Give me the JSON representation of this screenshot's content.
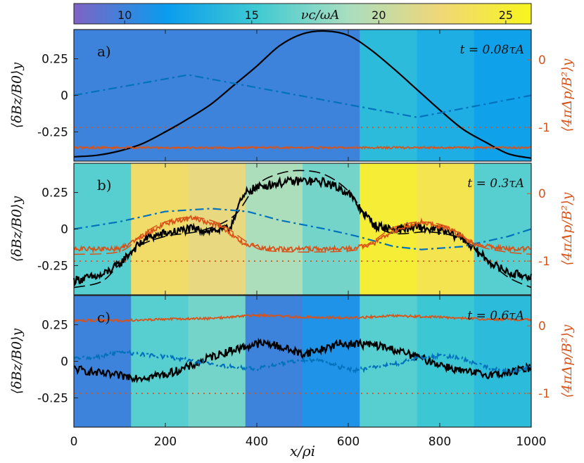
{
  "colorbar": {
    "label": "νc/ωA",
    "range": [
      8,
      26
    ],
    "ticks": [
      "10",
      "15",
      "20",
      "25"
    ],
    "tick_values": [
      10,
      15,
      20,
      25
    ],
    "stops": [
      "#7f63c4",
      "#0a9cee",
      "#3fcad3",
      "#a9dec0",
      "#f0d778",
      "#f8f51d"
    ]
  },
  "colors": {
    "bz": "#000000",
    "bx": "#0072bd",
    "pressure": "#d95319",
    "axis_right": "#d95319"
  },
  "chart_data": [
    {
      "type": "line",
      "panel_label": "a)",
      "time_label": "t = 0.08τA",
      "xlabel": "",
      "ylabel": "⟨δBz/B0⟩y",
      "ylabel_right": "⟨4πΔp/B²⟩y",
      "xlim": [
        0,
        1000
      ],
      "ylim": [
        -0.45,
        0.45
      ],
      "ylim_right": [
        -1.5,
        0.45
      ],
      "yticks": [
        "-0.25",
        "0",
        "0.25"
      ],
      "ytick_values": [
        -0.25,
        0,
        0.25
      ],
      "yticks_right": [
        "-1",
        "0"
      ],
      "ytick_values_right": [
        -1,
        0
      ],
      "background_nu": [
        10,
        10,
        10,
        10,
        10,
        14,
        13,
        12
      ],
      "series": [
        {
          "kind": "bz",
          "x": [
            0,
            50,
            100,
            150,
            200,
            250,
            300,
            350,
            400,
            450,
            500,
            550,
            600,
            650,
            700,
            750,
            800,
            850,
            900,
            950,
            1000
          ],
          "y": [
            -0.42,
            -0.41,
            -0.38,
            -0.33,
            -0.25,
            -0.16,
            -0.06,
            0.07,
            0.2,
            0.34,
            0.42,
            0.44,
            0.41,
            0.31,
            0.18,
            0.04,
            -0.1,
            -0.23,
            -0.32,
            -0.4,
            -0.43
          ]
        },
        {
          "kind": "bx",
          "x": [
            0,
            250,
            750,
            1000
          ],
          "y": [
            0.0,
            0.14,
            -0.15,
            0.0
          ]
        },
        {
          "kind": "dp",
          "x": [
            0,
            1000
          ],
          "y": [
            -1.3,
            -1.3
          ],
          "noise": 0.015
        },
        {
          "kind": "dp_ref",
          "x": [
            0,
            1000
          ],
          "y": [
            -1,
            -1
          ]
        }
      ]
    },
    {
      "type": "line",
      "panel_label": "b)",
      "time_label": "t = 0.3τA",
      "xlabel": "",
      "ylabel": "⟨δBz/B0⟩y",
      "ylabel_right": "⟨4πΔp/B²⟩y",
      "xlim": [
        0,
        1000
      ],
      "ylim": [
        -0.45,
        0.45
      ],
      "ylim_right": [
        -1.5,
        0.45
      ],
      "yticks": [
        "-0.25",
        "0",
        "0.25"
      ],
      "ytick_values": [
        -0.25,
        0,
        0.25
      ],
      "yticks_right": [
        "-1",
        "0"
      ],
      "ytick_values_right": [
        -1,
        0
      ],
      "background_nu": [
        16,
        23,
        22,
        19,
        17,
        25,
        24,
        16
      ],
      "series": [
        {
          "kind": "bz",
          "x": [
            0,
            60,
            100,
            130,
            160,
            200,
            250,
            300,
            340,
            360,
            380,
            420,
            460,
            500,
            550,
            600,
            630,
            660,
            700,
            750,
            800,
            850,
            880,
            920,
            960,
            1000
          ],
          "y": [
            -0.35,
            -0.32,
            -0.24,
            -0.14,
            -0.06,
            -0.03,
            0.0,
            -0.01,
            0.0,
            0.16,
            0.26,
            0.3,
            0.32,
            0.33,
            0.32,
            0.25,
            0.12,
            0.02,
            0.0,
            0.01,
            -0.01,
            -0.06,
            -0.15,
            -0.25,
            -0.31,
            -0.32
          ],
          "noise": 0.03
        },
        {
          "kind": "bz_fit",
          "x": [
            0,
            60,
            100,
            140,
            200,
            280,
            350,
            400,
            450,
            500,
            550,
            600,
            650,
            700,
            780,
            850,
            900,
            950,
            1000
          ],
          "y": [
            -0.4,
            -0.36,
            -0.24,
            -0.12,
            -0.05,
            -0.01,
            0.09,
            0.3,
            0.38,
            0.4,
            0.37,
            0.26,
            0.05,
            -0.03,
            -0.02,
            -0.07,
            -0.2,
            -0.33,
            -0.4
          ]
        },
        {
          "kind": "bx",
          "x": [
            0,
            100,
            200,
            300,
            380,
            450,
            550,
            620,
            700,
            760,
            850,
            950,
            1000
          ],
          "y": [
            0.0,
            0.05,
            0.12,
            0.14,
            0.12,
            0.06,
            0.0,
            -0.05,
            -0.12,
            -0.14,
            -0.12,
            -0.05,
            0.0
          ]
        },
        {
          "kind": "dp",
          "x": [
            0,
            100,
            150,
            200,
            260,
            320,
            370,
            420,
            500,
            600,
            650,
            700,
            760,
            820,
            880,
            940,
            1000
          ],
          "y": [
            -0.82,
            -0.82,
            -0.62,
            -0.44,
            -0.36,
            -0.48,
            -0.74,
            -0.82,
            -0.82,
            -0.82,
            -0.76,
            -0.55,
            -0.42,
            -0.52,
            -0.76,
            -0.82,
            -0.82
          ],
          "noise": 0.035
        },
        {
          "kind": "dp_fit",
          "x": [
            0,
            100,
            150,
            200,
            260,
            320,
            380,
            430,
            600,
            650,
            700,
            760,
            820,
            880,
            940,
            1000
          ],
          "y": [
            -0.9,
            -0.86,
            -0.6,
            -0.42,
            -0.35,
            -0.45,
            -0.72,
            -0.85,
            -0.85,
            -0.72,
            -0.5,
            -0.42,
            -0.5,
            -0.76,
            -0.86,
            -0.9
          ]
        },
        {
          "kind": "dp_ref",
          "x": [
            0,
            1000
          ],
          "y": [
            -1,
            -1
          ]
        }
      ]
    },
    {
      "type": "line",
      "panel_label": "c)",
      "time_label": "t = 0.6τA",
      "xlabel": "x/ρi",
      "ylabel": "⟨δBz/B0⟩y",
      "ylabel_right": "⟨4πΔp/B²⟩y",
      "xlim": [
        0,
        1000
      ],
      "ylim": [
        -0.45,
        0.45
      ],
      "ylim_right": [
        -1.5,
        0.45
      ],
      "xticks": [
        "0",
        "200",
        "400",
        "600",
        "800",
        "1000"
      ],
      "xtick_values": [
        0,
        200,
        400,
        600,
        800,
        1000
      ],
      "yticks": [
        "-0.25",
        "0",
        "0.25"
      ],
      "ytick_values": [
        -0.25,
        0,
        0.25
      ],
      "yticks_right": [
        "-1",
        "0"
      ],
      "ytick_values_right": [
        -1,
        0
      ],
      "background_nu": [
        10,
        16,
        17,
        10,
        11,
        16,
        15,
        14
      ],
      "series": [
        {
          "kind": "bz",
          "x": [
            0,
            50,
            100,
            150,
            200,
            250,
            300,
            350,
            400,
            430,
            470,
            500,
            540,
            580,
            620,
            660,
            700,
            750,
            800,
            850,
            900,
            950,
            1000
          ],
          "y": [
            -0.05,
            -0.08,
            -0.1,
            -0.11,
            -0.09,
            -0.04,
            0.03,
            0.08,
            0.12,
            0.12,
            0.08,
            0.05,
            0.08,
            0.12,
            0.12,
            0.11,
            0.08,
            0.03,
            -0.02,
            -0.07,
            -0.09,
            -0.08,
            -0.04
          ],
          "noise": 0.028
        },
        {
          "kind": "bx",
          "x": [
            0,
            50,
            100,
            150,
            200,
            250,
            300,
            350,
            400,
            450,
            500,
            550,
            580,
            620,
            700,
            750,
            800,
            850,
            900,
            950,
            1000
          ],
          "y": [
            0.02,
            0.03,
            0.06,
            0.05,
            0.03,
            0.01,
            -0.02,
            -0.04,
            -0.05,
            -0.02,
            0.01,
            0.0,
            -0.04,
            -0.06,
            -0.02,
            0.02,
            0.04,
            0.02,
            -0.04,
            -0.07,
            -0.04
          ],
          "noise": 0.012
        },
        {
          "kind": "dp",
          "x": [
            0,
            100,
            200,
            300,
            400,
            500,
            600,
            700,
            800,
            900,
            1000
          ],
          "y": [
            0.08,
            0.08,
            0.1,
            0.11,
            0.16,
            0.13,
            0.12,
            0.15,
            0.13,
            0.1,
            0.09
          ],
          "noise": 0.018
        },
        {
          "kind": "dp_ref",
          "x": [
            0,
            1000
          ],
          "y": [
            -1,
            -1
          ]
        }
      ]
    }
  ]
}
